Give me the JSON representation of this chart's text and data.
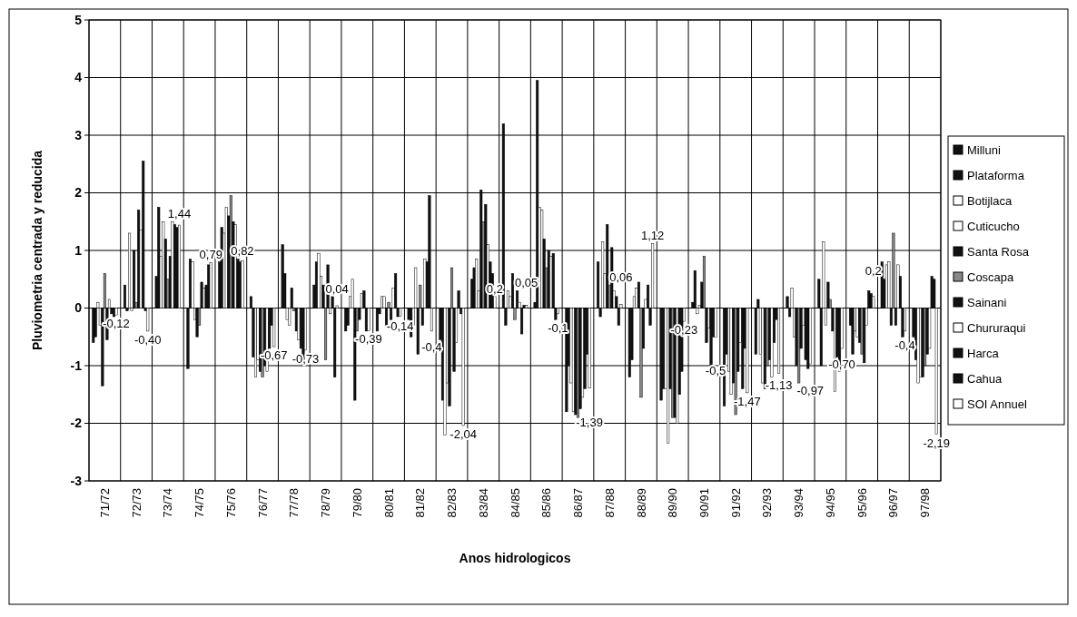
{
  "chart_data": {
    "type": "bar",
    "xlabel": "Anos hidrologicos",
    "ylabel": "Pluviometria centrada y reducida",
    "categories": [
      "71/72",
      "72/73",
      "73/74",
      "74/75",
      "75/76",
      "76/77",
      "77/78",
      "78/79",
      "79/80",
      "80/81",
      "81/82",
      "82/83",
      "83/84",
      "84/85",
      "85/86",
      "86/87",
      "87/88",
      "88/89",
      "89/90",
      "90/91",
      "91/92",
      "92/93",
      "93/94",
      "94/95",
      "95/96",
      "96/97",
      "97/98"
    ],
    "ylim": [
      -3,
      5
    ],
    "yticks": [
      -3,
      -2,
      -1,
      0,
      1,
      2,
      3,
      4,
      5
    ],
    "grid": true,
    "legend": "right",
    "series": [
      {
        "name": "Milluni",
        "color": "#111111",
        "values": [
          -0.6,
          0.4,
          0.55,
          -1.05,
          0.8,
          0.2,
          1.1,
          0.4,
          -0.4,
          -0.4,
          -0.2,
          -0.55,
          0.5,
          3.2,
          0.1,
          -1.8,
          0.8,
          -1.2,
          -1.6,
          0.1,
          -1.7,
          -0.8,
          0.2,
          0.5,
          -0.3,
          0.8,
          -0.5
        ]
      },
      {
        "name": "Plataforma",
        "color": "#111111",
        "values": [
          -0.5,
          -0.05,
          1.75,
          0.85,
          1.4,
          -0.85,
          0.6,
          0.8,
          -0.3,
          -0.1,
          -0.5,
          -1.6,
          0.7,
          -0.3,
          3.95,
          -1.0,
          -0.15,
          -0.9,
          -1.4,
          0.65,
          -0.8,
          0.15,
          -0.15,
          -1.0,
          -0.8,
          0.5,
          -0.9
        ]
      },
      {
        "name": "Botijlaca",
        "color": "#ffffff",
        "values": [
          0.1,
          1.3,
          0.9,
          0.8,
          1.3,
          -1.2,
          -0.2,
          0.95,
          0.2,
          0.2,
          -0.3,
          -2.2,
          0.85,
          0.3,
          1.75,
          -1.3,
          1.15,
          0.2,
          -1.4,
          -0.1,
          -1.1,
          -0.8,
          0.35,
          1.15,
          -0.4,
          0.75,
          -1.3
        ]
      },
      {
        "name": "Cuticucho",
        "color": "#ffffff",
        "values": [
          -0.3,
          -0.05,
          1.5,
          -0.2,
          1.75,
          -0.9,
          -0.3,
          0.55,
          0.5,
          0.2,
          0.7,
          -1.3,
          0.3,
          0.2,
          1.7,
          -1.8,
          0.6,
          0.35,
          -2.35,
          0.05,
          -1.5,
          -1.3,
          -0.5,
          -0.3,
          -0.5,
          0.8,
          -1.2
        ]
      },
      {
        "name": "Santa Rosa",
        "color": "#111111",
        "values": [
          -1.35,
          1.0,
          1.2,
          -0.5,
          1.6,
          -1.1,
          0.35,
          0.4,
          -1.6,
          -0.3,
          -0.8,
          -1.7,
          2.05,
          0.6,
          1.2,
          -1.85,
          1.45,
          0.45,
          -1.4,
          0.45,
          -1.3,
          -1.4,
          -1.0,
          0.45,
          -0.6,
          -0.3,
          -1.2
        ]
      },
      {
        "name": "Coscapa",
        "color": "#888888",
        "values": [
          0.6,
          0.1,
          0.5,
          -0.3,
          1.95,
          -1.2,
          -0.05,
          -0.9,
          -0.4,
          0.1,
          0.4,
          0.7,
          1.5,
          -0.2,
          0.7,
          -1.9,
          0.4,
          -1.55,
          -1.9,
          0.9,
          -1.85,
          -1.0,
          -1.3,
          0.15,
          -0.8,
          1.3,
          -1.0
        ]
      },
      {
        "name": "Sainani",
        "color": "#111111",
        "values": [
          -0.55,
          1.7,
          0.9,
          0.45,
          1.5,
          -1.0,
          -0.4,
          0.75,
          -0.2,
          -0.2,
          -0.3,
          -1.1,
          1.8,
          0.3,
          1.0,
          -1.75,
          1.05,
          -0.7,
          -1.9,
          -0.6,
          -1.1,
          -0.9,
          -0.7,
          -0.4,
          -0.95,
          -0.3,
          -0.8
        ]
      },
      {
        "name": "Chururaqui",
        "color": "#ffffff",
        "values": [
          0.15,
          1.35,
          1.5,
          0.35,
          1.45,
          -1.1,
          -0.55,
          -0.1,
          0.25,
          0.35,
          0.85,
          -0.6,
          1.1,
          0.1,
          0.9,
          -1.55,
          0.3,
          0.15,
          -2.0,
          -0.35,
          -0.6,
          -1.2,
          -0.3,
          -1.45,
          -0.3,
          0.75,
          -0.7
        ]
      },
      {
        "name": "Harca",
        "color": "#111111",
        "values": [
          -0.1,
          2.55,
          1.45,
          0.4,
          0.85,
          -0.7,
          -0.7,
          0.2,
          0.3,
          0.6,
          0.8,
          0.3,
          0.8,
          -0.45,
          0.95,
          -1.4,
          0.2,
          0.4,
          -1.5,
          -1.0,
          -1.4,
          -0.6,
          -0.9,
          -0.85,
          0.3,
          0.55,
          0.55
        ]
      },
      {
        "name": "Cahua",
        "color": "#111111",
        "values": [
          -0.15,
          -0.05,
          1.4,
          0.75,
          0.8,
          -0.3,
          -1.0,
          -1.2,
          -0.4,
          -0.15,
          1.95,
          -0.1,
          0.6,
          0.05,
          -0.2,
          -0.8,
          -0.3,
          -0.3,
          -1.1,
          -0.5,
          -0.7,
          -0.2,
          -1.05,
          -1.1,
          0.25,
          -0.5,
          0.5
        ]
      },
      {
        "name": "SOI Annuel",
        "color": "#ffffff",
        "values": [
          -0.12,
          -0.4,
          1.44,
          0.79,
          0.82,
          -0.67,
          -0.73,
          0.04,
          -0.39,
          -0.14,
          -0.4,
          -2.04,
          0.2,
          0.05,
          -0.1,
          -1.39,
          0.06,
          1.12,
          -0.23,
          -0.5,
          -1.47,
          -1.13,
          -0.97,
          -0.7,
          0.2,
          -0.4,
          -2.19
        ],
        "value_labels": [
          "-0,12",
          "-0,40",
          "1,44",
          "0,79",
          "0,82",
          "-0,67",
          "-0,73",
          "0,04",
          "-0,39",
          "-0,14",
          "-0,4",
          "-2,04",
          "0,2",
          "0,05",
          "-0,1",
          "-1,39",
          "0,06",
          "1,12",
          "-0,23",
          "-0,5",
          "-1,47",
          "-1,13",
          "-0,97",
          "-0,70",
          "0,2",
          "-0,4",
          "-2,19"
        ]
      }
    ]
  }
}
